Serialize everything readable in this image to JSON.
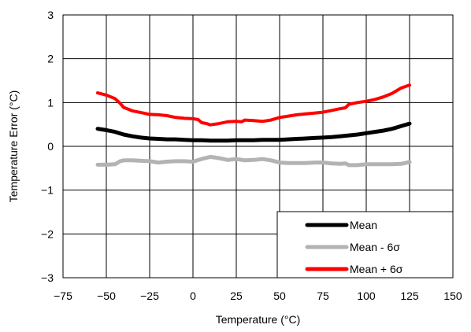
{
  "chart_data": {
    "type": "line",
    "title": "",
    "xlabel": "Temperature (°C)",
    "ylabel": "Temperature Error (°C)",
    "xlim": [
      -75,
      150
    ],
    "ylim": [
      -3,
      3
    ],
    "xticks": [
      -75,
      -50,
      -25,
      0,
      25,
      50,
      75,
      100,
      125,
      150
    ],
    "yticks": [
      -3,
      -2,
      -1,
      0,
      1,
      2,
      3
    ],
    "xtick_labels": [
      "−75",
      "−50",
      "−25",
      "0",
      "25",
      "50",
      "75",
      "100",
      "125",
      "150"
    ],
    "ytick_labels": [
      "−3",
      "−2",
      "−1",
      "0",
      "1",
      "2",
      "3"
    ],
    "grid": true,
    "legend_position": "bottom-right",
    "series": [
      {
        "name": "Mean",
        "color": "#000000",
        "x": [
          -55,
          -50,
          -45,
          -40,
          -35,
          -30,
          -25,
          -20,
          -15,
          -10,
          -5,
          0,
          5,
          10,
          15,
          20,
          25,
          30,
          35,
          40,
          45,
          50,
          55,
          60,
          65,
          70,
          75,
          80,
          85,
          90,
          95,
          100,
          105,
          110,
          115,
          120,
          125
        ],
        "y": [
          0.4,
          0.37,
          0.33,
          0.27,
          0.23,
          0.2,
          0.18,
          0.17,
          0.16,
          0.16,
          0.15,
          0.14,
          0.14,
          0.13,
          0.13,
          0.13,
          0.14,
          0.14,
          0.14,
          0.15,
          0.15,
          0.15,
          0.16,
          0.17,
          0.18,
          0.19,
          0.2,
          0.21,
          0.23,
          0.25,
          0.27,
          0.3,
          0.33,
          0.36,
          0.4,
          0.46,
          0.52
        ]
      },
      {
        "name": "Mean - 6σ",
        "color": "#b3b3b3",
        "x": [
          -55,
          -50,
          -45,
          -42,
          -40,
          -35,
          -30,
          -25,
          -20,
          -15,
          -10,
          -5,
          0,
          5,
          10,
          15,
          20,
          25,
          30,
          35,
          40,
          45,
          50,
          55,
          60,
          65,
          70,
          75,
          80,
          85,
          88,
          90,
          95,
          100,
          105,
          110,
          115,
          120,
          125
        ],
        "y": [
          -0.42,
          -0.42,
          -0.41,
          -0.34,
          -0.32,
          -0.32,
          -0.33,
          -0.34,
          -0.37,
          -0.35,
          -0.34,
          -0.34,
          -0.35,
          -0.29,
          -0.24,
          -0.27,
          -0.31,
          -0.29,
          -0.32,
          -0.31,
          -0.29,
          -0.32,
          -0.37,
          -0.38,
          -0.38,
          -0.38,
          -0.37,
          -0.37,
          -0.39,
          -0.4,
          -0.39,
          -0.43,
          -0.43,
          -0.41,
          -0.41,
          -0.41,
          -0.41,
          -0.4,
          -0.36
        ]
      },
      {
        "name": "Mean + 6σ",
        "color": "#ff0000",
        "x": [
          -55,
          -50,
          -45,
          -42,
          -40,
          -35,
          -30,
          -25,
          -20,
          -15,
          -10,
          -5,
          0,
          3,
          5,
          8,
          10,
          15,
          20,
          25,
          28,
          30,
          35,
          40,
          45,
          50,
          55,
          60,
          65,
          70,
          75,
          80,
          85,
          88,
          90,
          95,
          100,
          105,
          110,
          115,
          120,
          125
        ],
        "y": [
          1.22,
          1.17,
          1.09,
          0.98,
          0.89,
          0.81,
          0.77,
          0.73,
          0.72,
          0.7,
          0.66,
          0.64,
          0.63,
          0.61,
          0.54,
          0.52,
          0.49,
          0.52,
          0.56,
          0.57,
          0.56,
          0.6,
          0.59,
          0.57,
          0.6,
          0.66,
          0.69,
          0.72,
          0.74,
          0.76,
          0.78,
          0.82,
          0.86,
          0.88,
          0.96,
          1.0,
          1.03,
          1.07,
          1.13,
          1.21,
          1.33,
          1.4
        ]
      }
    ]
  }
}
